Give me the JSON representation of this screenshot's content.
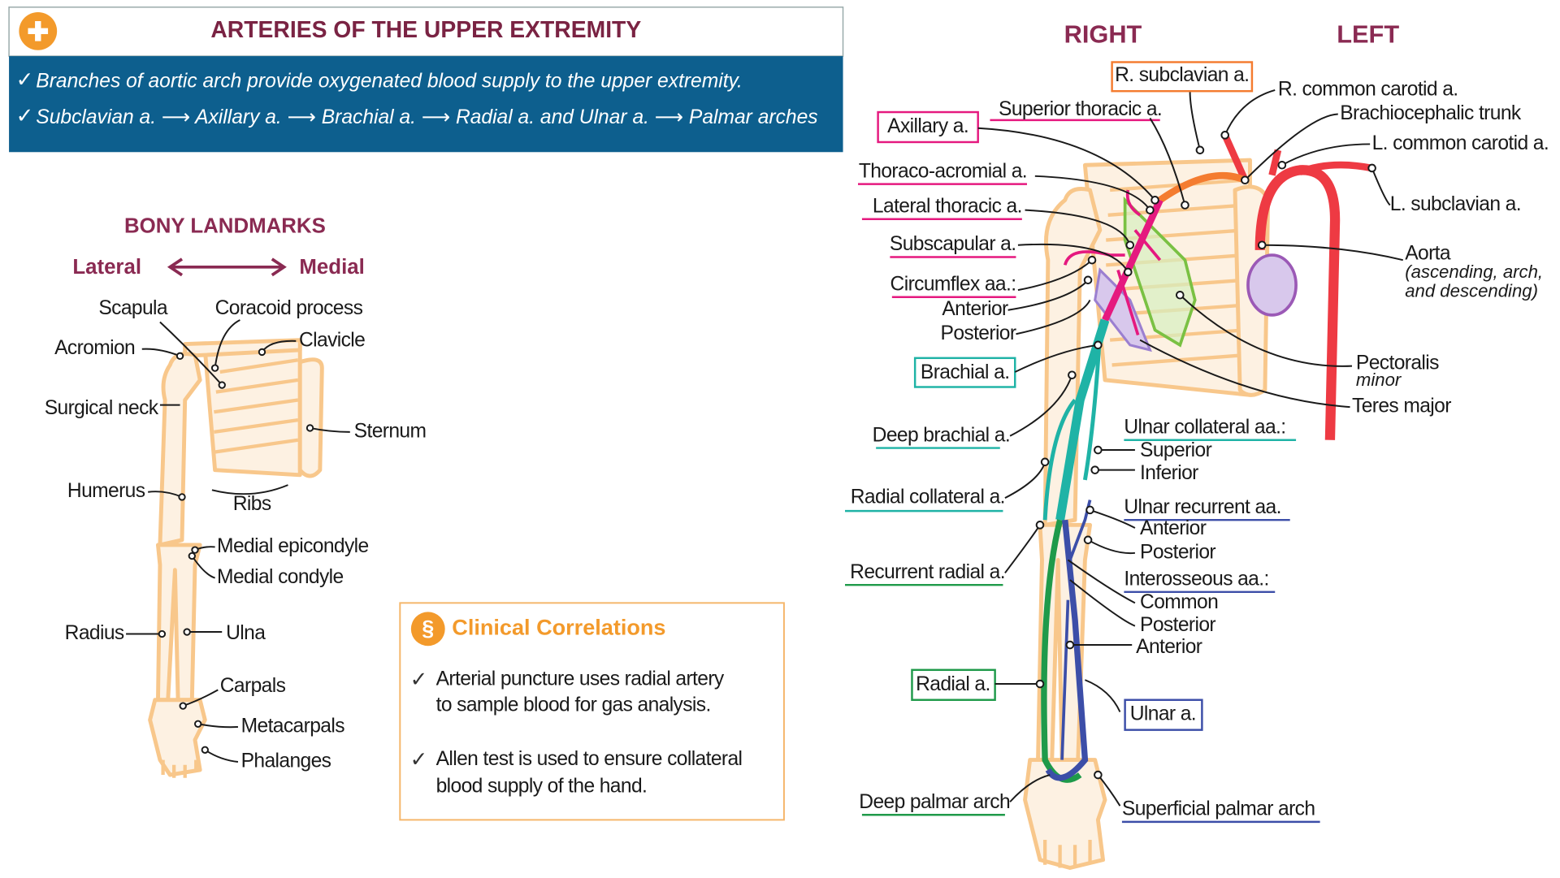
{
  "header": {
    "title": "ARTERIES OF THE UPPER EXTREMITY",
    "points": [
      "Branches of aortic arch provide oxygenated blood supply to the upper extremity.",
      "Subclavian a. ⟶ Axillary a. ⟶ Brachial a. ⟶ Radial a. and Ulnar a. ⟶ Palmar arches"
    ]
  },
  "bony": {
    "title": "BONY LANDMARKS",
    "lateral": "Lateral",
    "medial": "Medial",
    "labels": [
      "Scapula",
      "Coracoid process",
      "Acromion",
      "Clavicle",
      "Surgical neck",
      "Sternum",
      "Humerus",
      "Ribs",
      "Medial epicondyle",
      "Medial condyle",
      "Radius",
      "Ulna",
      "Carpals",
      "Metacarpals",
      "Phalanges"
    ]
  },
  "clinical": {
    "title": "Clinical Correlations",
    "items": [
      [
        "Arterial puncture uses radial artery",
        "to sample blood for gas analysis."
      ],
      [
        "Allen test is used to ensure collateral",
        "blood supply of the hand."
      ]
    ]
  },
  "arteries": {
    "right": "RIGHT",
    "left": "LEFT",
    "labels": [
      "R. subclavian a.",
      "R. common carotid a.",
      "Brachiocephalic trunk",
      "L. common carotid a.",
      "L. subclavian a.",
      "Aorta",
      "(ascending, arch,",
      "and descending)",
      "Pectoralis",
      "minor",
      "Teres major",
      "Superior thoracic a.",
      "Axillary a.",
      "Thoraco-acromial a.",
      "Lateral thoracic a.",
      "Subscapular a.",
      "Circumflex aa.:",
      "Anterior",
      "Posterior",
      "Brachial a.",
      "Deep brachial a.",
      "Radial collateral a.",
      "Recurrent radial a.",
      "Radial a.",
      "Deep palmar arch",
      "Ulnar collateral aa.:",
      "Superior",
      "Inferior",
      "Ulnar recurrent  aa.",
      "Anterior",
      "Posterior",
      "Interosseous aa.:",
      "Common",
      "Posterior",
      "Anterior",
      "Ulnar a.",
      "Superficial palmar arch"
    ]
  }
}
